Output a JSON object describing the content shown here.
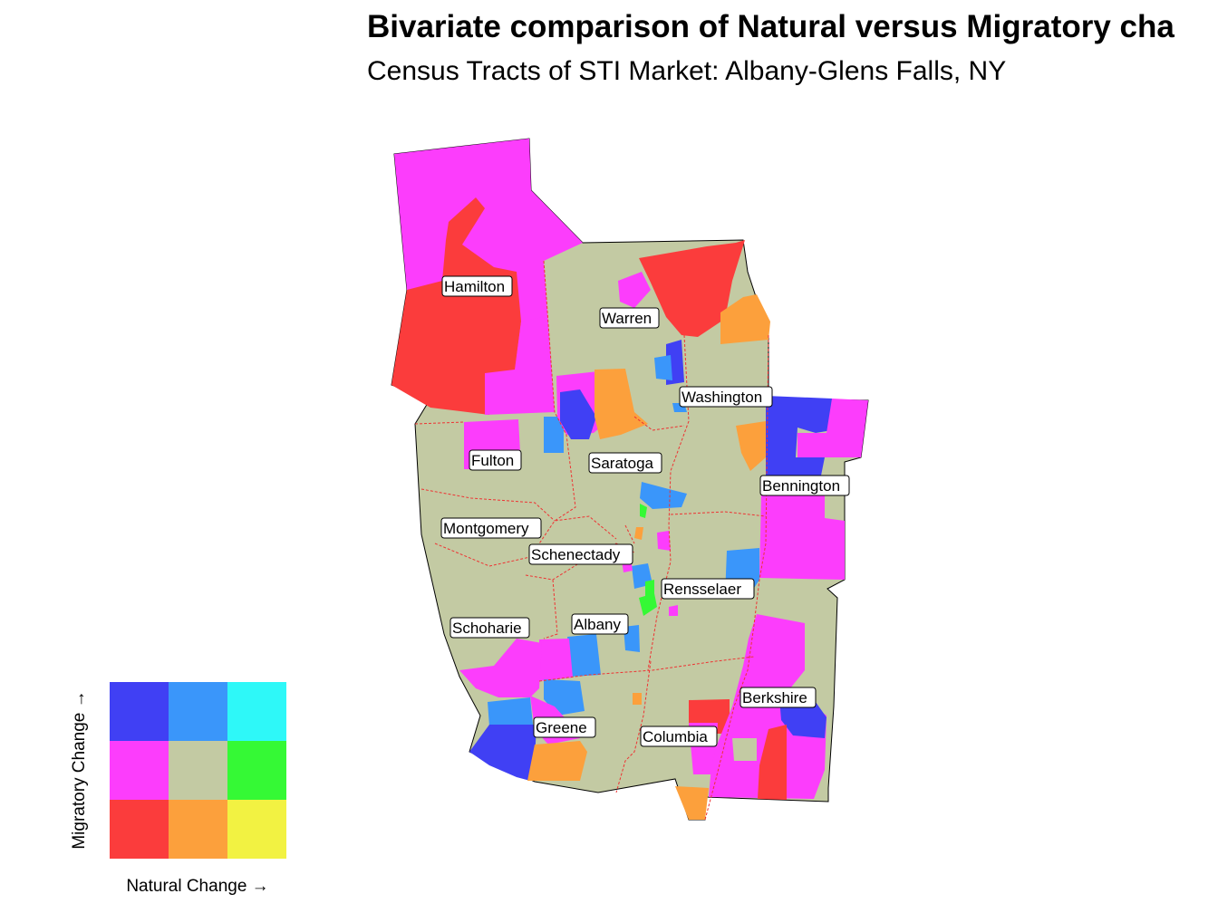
{
  "title": "Bivariate comparison of Natural versus Migratory cha",
  "subtitle": "Census Tracts of STI Market: Albany-Glens Falls, NY",
  "counties": [
    "Hamilton",
    "Warren",
    "Washington",
    "Fulton",
    "Saratoga",
    "Bennington",
    "Montgomery",
    "Schenectady",
    "Rensselaer",
    "Schoharie",
    "Albany",
    "Berkshire",
    "Greene",
    "Columbia"
  ],
  "legend": {
    "x_label": "Natural Change →",
    "y_label": "Migratory Change →",
    "colors_top": [
      "#4040f4",
      "#3a96fa",
      "#2ef8f8"
    ],
    "colors_mid": [
      "#fc3dfc",
      "#c3caa3",
      "#35f935"
    ],
    "colors_bot": [
      "#fb3c3c",
      "#fca03c",
      "#f2f242"
    ]
  },
  "colors": {
    "base": "#c3caa3",
    "boundary": "#ee3333"
  }
}
